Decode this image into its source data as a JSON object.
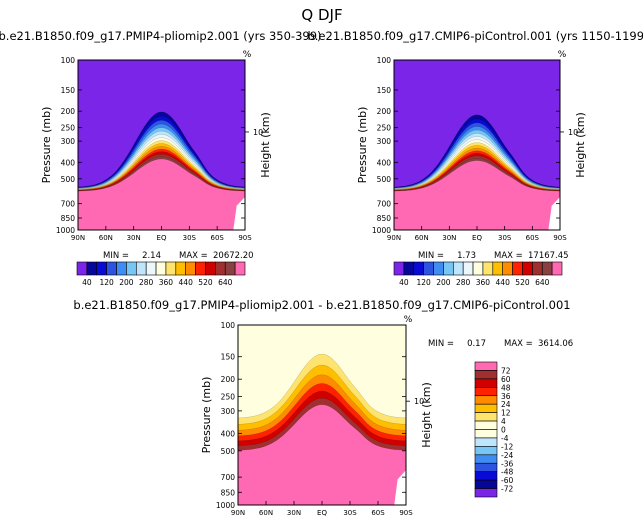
{
  "figure_title": "Q DJF",
  "chart_data": [
    {
      "type": "contour",
      "title": "b.e21.B1850.f09_g17.PMIP4-pliomip2.001 (yrs 350-399)",
      "variable": "Q",
      "season": "DJF",
      "xlabel": "",
      "ylabel": "Pressure (mb)",
      "right_label": "Height (km)",
      "right_tick": "10",
      "right_unit": "%",
      "x_ticks": [
        "90N",
        "60N",
        "30N",
        "EQ",
        "30S",
        "60S",
        "90S"
      ],
      "y_ticks": [
        "100",
        "150",
        "200",
        "250",
        "300",
        "400",
        "500",
        "700",
        "850",
        "1000"
      ],
      "ylim": [
        1000,
        100
      ],
      "stats": {
        "min_label": "MIN =",
        "min": "2.14",
        "max_label": "MAX =",
        "max": "20672.20"
      },
      "colorbar": {
        "orientation": "horizontal",
        "levels": [
          40,
          80,
          120,
          160,
          200,
          240,
          280,
          320,
          360,
          400,
          440,
          480,
          520,
          560,
          600,
          640
        ],
        "labels": [
          "40",
          "120",
          "200",
          "280",
          "360",
          "440",
          "520",
          "640"
        ],
        "colors": [
          "#7b25e8",
          "#06069a",
          "#0a0ad6",
          "#2c54e0",
          "#3f8cf2",
          "#77c6f5",
          "#bfe5fa",
          "#ecf7fc",
          "#ffffe0",
          "#ffe36f",
          "#ffbf00",
          "#ff8c00",
          "#ff2200",
          "#d00000",
          "#a03030",
          "#8a4040",
          "#ff69b4"
        ]
      }
    },
    {
      "type": "contour",
      "title": "b.e21.B1850.f09_g17.CMIP6-piControl.001 (yrs 1150-1199)",
      "variable": "Q",
      "season": "DJF",
      "xlabel": "",
      "ylabel": "Pressure (mb)",
      "right_label": "Height (km)",
      "right_tick": "10",
      "right_unit": "%",
      "x_ticks": [
        "90N",
        "60N",
        "30N",
        "EQ",
        "30S",
        "60S",
        "90S"
      ],
      "y_ticks": [
        "100",
        "150",
        "200",
        "250",
        "300",
        "400",
        "500",
        "700",
        "850",
        "1000"
      ],
      "ylim": [
        1000,
        100
      ],
      "stats": {
        "min_label": "MIN =",
        "min": "1.73",
        "max_label": "MAX =",
        "max": "17167.45"
      },
      "colorbar": {
        "orientation": "horizontal",
        "levels": [
          40,
          80,
          120,
          160,
          200,
          240,
          280,
          320,
          360,
          400,
          440,
          480,
          520,
          560,
          600,
          640
        ],
        "labels": [
          "40",
          "120",
          "200",
          "280",
          "360",
          "440",
          "520",
          "640"
        ],
        "colors": [
          "#7b25e8",
          "#06069a",
          "#0a0ad6",
          "#2c54e0",
          "#3f8cf2",
          "#77c6f5",
          "#bfe5fa",
          "#ecf7fc",
          "#ffffe0",
          "#ffe36f",
          "#ffbf00",
          "#ff8c00",
          "#ff2200",
          "#d00000",
          "#a03030",
          "#8a4040",
          "#ff69b4"
        ]
      }
    },
    {
      "type": "contour",
      "title": "b.e21.B1850.f09_g17.PMIP4-pliomip2.001 - b.e21.B1850.f09_g17.CMIP6-piControl.001",
      "variable": "Q",
      "season": "DJF",
      "xlabel": "",
      "ylabel": "Pressure (mb)",
      "right_label": "Height (km)",
      "right_tick": "10",
      "right_unit": "%",
      "x_ticks": [
        "90N",
        "60N",
        "30N",
        "EQ",
        "30S",
        "60S",
        "90S"
      ],
      "y_ticks": [
        "100",
        "150",
        "200",
        "250",
        "300",
        "400",
        "500",
        "700",
        "850",
        "1000"
      ],
      "ylim": [
        1000,
        100
      ],
      "stats": {
        "min_label": "MIN =",
        "min": "0.17",
        "max_label": "MAX =",
        "max": "3614.06"
      },
      "colorbar": {
        "orientation": "vertical",
        "labels": [
          "72",
          "60",
          "48",
          "36",
          "24",
          "12",
          "4",
          "0",
          "-4",
          "-12",
          "-24",
          "-36",
          "-48",
          "-60",
          "-72"
        ],
        "colors": [
          "#ff69b4",
          "#a03030",
          "#d00000",
          "#ff2200",
          "#ff8c00",
          "#ffbf00",
          "#ffe36f",
          "#ffffe0",
          "#ffffe0",
          "#bfe5fa",
          "#77c6f5",
          "#3f8cf2",
          "#2c54e0",
          "#0a0ad6",
          "#06069a",
          "#7b25e8"
        ]
      }
    }
  ]
}
